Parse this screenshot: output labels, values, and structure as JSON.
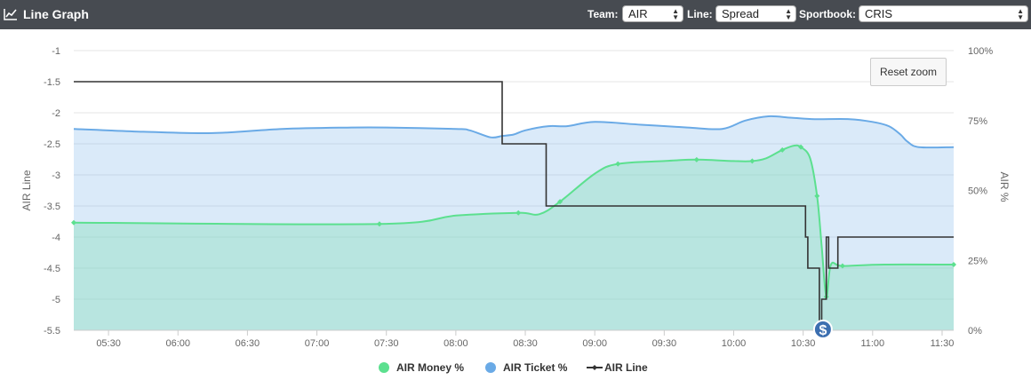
{
  "header": {
    "title": "Line Graph",
    "team_label": "Team:",
    "team_value": "AIR",
    "line_label": "Line:",
    "line_value": "Spread",
    "sportsbook_label": "Sportbook:",
    "sportsbook_value": "CRIS"
  },
  "reset_zoom_label": "Reset zoom",
  "colors": {
    "header_bg": "#474b51",
    "money": "#5ce08f",
    "ticket": "#6aaae6",
    "line": "#333333",
    "marker": "#3c6fb0"
  },
  "chart_data": {
    "type": "line",
    "title": "",
    "xlabel": "",
    "ylabel": "AIR Line",
    "y2label": "AIR %",
    "x_ticks": [
      "05:30",
      "06:00",
      "06:30",
      "07:00",
      "07:30",
      "08:00",
      "08:30",
      "09:00",
      "09:30",
      "10:00",
      "10:30",
      "11:00",
      "11:30"
    ],
    "xlim": [
      "05:15",
      "11:35"
    ],
    "y_ticks": [
      "-1",
      "-1.5",
      "-2",
      "-2.5",
      "-3",
      "-3.5",
      "-4",
      "-4.5",
      "-5",
      "-5.5"
    ],
    "ylim": [
      -5.5,
      -1
    ],
    "y2_ticks": [
      "100%",
      "75%",
      "50%",
      "25%",
      "0%"
    ],
    "y2lim": [
      0,
      100
    ],
    "legend_position": "bottom",
    "marker_symbol": "$",
    "series": [
      {
        "name": "AIR Money %",
        "axis": "right",
        "style": "area",
        "points": [
          [
            "05:15",
            38.5
          ],
          [
            "07:27",
            38
          ],
          [
            "08:00",
            41
          ],
          [
            "08:27",
            42
          ],
          [
            "08:36",
            41.5
          ],
          [
            "08:45",
            46
          ],
          [
            "09:00",
            56
          ],
          [
            "09:10",
            59.5
          ],
          [
            "09:30",
            60.5
          ],
          [
            "09:44",
            61
          ],
          [
            "10:00",
            60.5
          ],
          [
            "10:08",
            60.5
          ],
          [
            "10:14",
            61.5
          ],
          [
            "10:21",
            64.5
          ],
          [
            "10:26",
            66
          ],
          [
            "10:29",
            65.5
          ],
          [
            "10:33",
            61.5
          ],
          [
            "10:36",
            48
          ],
          [
            "10:38",
            30
          ],
          [
            "10:40",
            12
          ],
          [
            "10:42",
            23.5
          ],
          [
            "10:47",
            23
          ],
          [
            "11:05",
            23.5
          ],
          [
            "11:35",
            23.5
          ]
        ]
      },
      {
        "name": "AIR Ticket %",
        "axis": "right",
        "style": "area",
        "points": [
          [
            "05:15",
            72
          ],
          [
            "05:45",
            71
          ],
          [
            "06:15",
            70.5
          ],
          [
            "06:45",
            72
          ],
          [
            "07:15",
            72.5
          ],
          [
            "07:30",
            72.5
          ],
          [
            "08:00",
            72
          ],
          [
            "08:06",
            71.5
          ],
          [
            "08:15",
            69
          ],
          [
            "08:20",
            69.5
          ],
          [
            "08:25",
            70
          ],
          [
            "08:30",
            71.5
          ],
          [
            "08:40",
            73
          ],
          [
            "08:48",
            73
          ],
          [
            "09:00",
            74.5
          ],
          [
            "09:20",
            73.5
          ],
          [
            "09:40",
            72.5
          ],
          [
            "09:55",
            72
          ],
          [
            "10:05",
            75
          ],
          [
            "10:15",
            76.5
          ],
          [
            "10:25",
            76
          ],
          [
            "10:35",
            75.5
          ],
          [
            "10:50",
            75.5
          ],
          [
            "11:00",
            74.5
          ],
          [
            "11:07",
            73
          ],
          [
            "11:12",
            70
          ],
          [
            "11:15",
            67.5
          ],
          [
            "11:20",
            65.5
          ],
          [
            "11:35",
            65.5
          ]
        ]
      },
      {
        "name": "AIR Line",
        "axis": "left",
        "style": "step",
        "points": [
          [
            "05:15",
            -1.5
          ],
          [
            "08:20",
            -1.5
          ],
          [
            "08:20",
            -2.5
          ],
          [
            "08:39",
            -2.5
          ],
          [
            "08:39",
            -3.5
          ],
          [
            "10:31",
            -3.5
          ],
          [
            "10:31",
            -4
          ],
          [
            "10:32",
            -4
          ],
          [
            "10:32",
            -4.5
          ],
          [
            "10:37",
            -4.5
          ],
          [
            "10:37",
            -5.5
          ],
          [
            "10:38",
            -5.5
          ],
          [
            "10:38",
            -5
          ],
          [
            "10:40",
            -5
          ],
          [
            "10:40",
            -4
          ],
          [
            "10:41",
            -4
          ],
          [
            "10:41",
            -4.5
          ],
          [
            "10:45",
            -4.5
          ],
          [
            "10:45",
            -4
          ],
          [
            "11:35",
            -4
          ]
        ]
      }
    ]
  }
}
